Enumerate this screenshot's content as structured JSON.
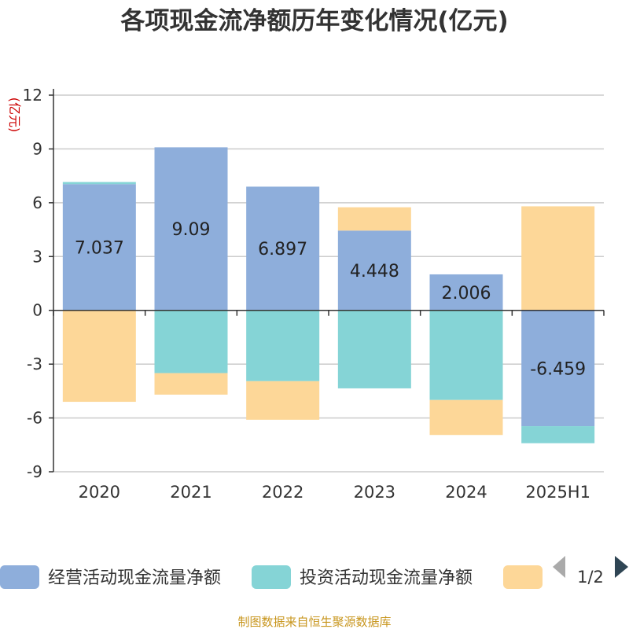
{
  "chart_data": {
    "type": "bar",
    "stacked": true,
    "title": "各项现金流净额历年变化情况(亿元)",
    "ylabel": "(亿元)",
    "xlabel": "",
    "categories": [
      "2020",
      "2021",
      "2022",
      "2023",
      "2024",
      "2025H1"
    ],
    "ylim": [
      -9,
      12
    ],
    "yticks": [
      "12",
      "9",
      "6",
      "3",
      "0",
      "-3",
      "-6",
      "-9"
    ],
    "ytick_values": [
      12,
      9,
      6,
      3,
      0,
      -3,
      -6,
      -9
    ],
    "grid": true,
    "legend_position": "bottom",
    "series": [
      {
        "name": "经营活动现金流量净额",
        "color": "#8eaedb",
        "values": [
          7.037,
          9.09,
          6.897,
          4.448,
          2.006,
          -6.459
        ],
        "labels": [
          "7.037",
          "9.09",
          "6.897",
          "4.448",
          "2.006",
          "-6.459"
        ]
      },
      {
        "name": "投资活动现金流量净额",
        "color": "#85d4d6",
        "values": [
          0.12,
          -3.5,
          -3.95,
          -4.35,
          -5.0,
          -0.95
        ]
      },
      {
        "name": "",
        "color": "#fdd798",
        "values": [
          -5.1,
          -1.2,
          -2.15,
          1.3,
          -1.95,
          5.8
        ]
      }
    ]
  },
  "legend": {
    "page_indicator": "1/2",
    "prev_icon": "triangle-left-icon",
    "next_icon": "triangle-right-icon"
  },
  "source_text": "制图数据来自恒生聚源数据库"
}
